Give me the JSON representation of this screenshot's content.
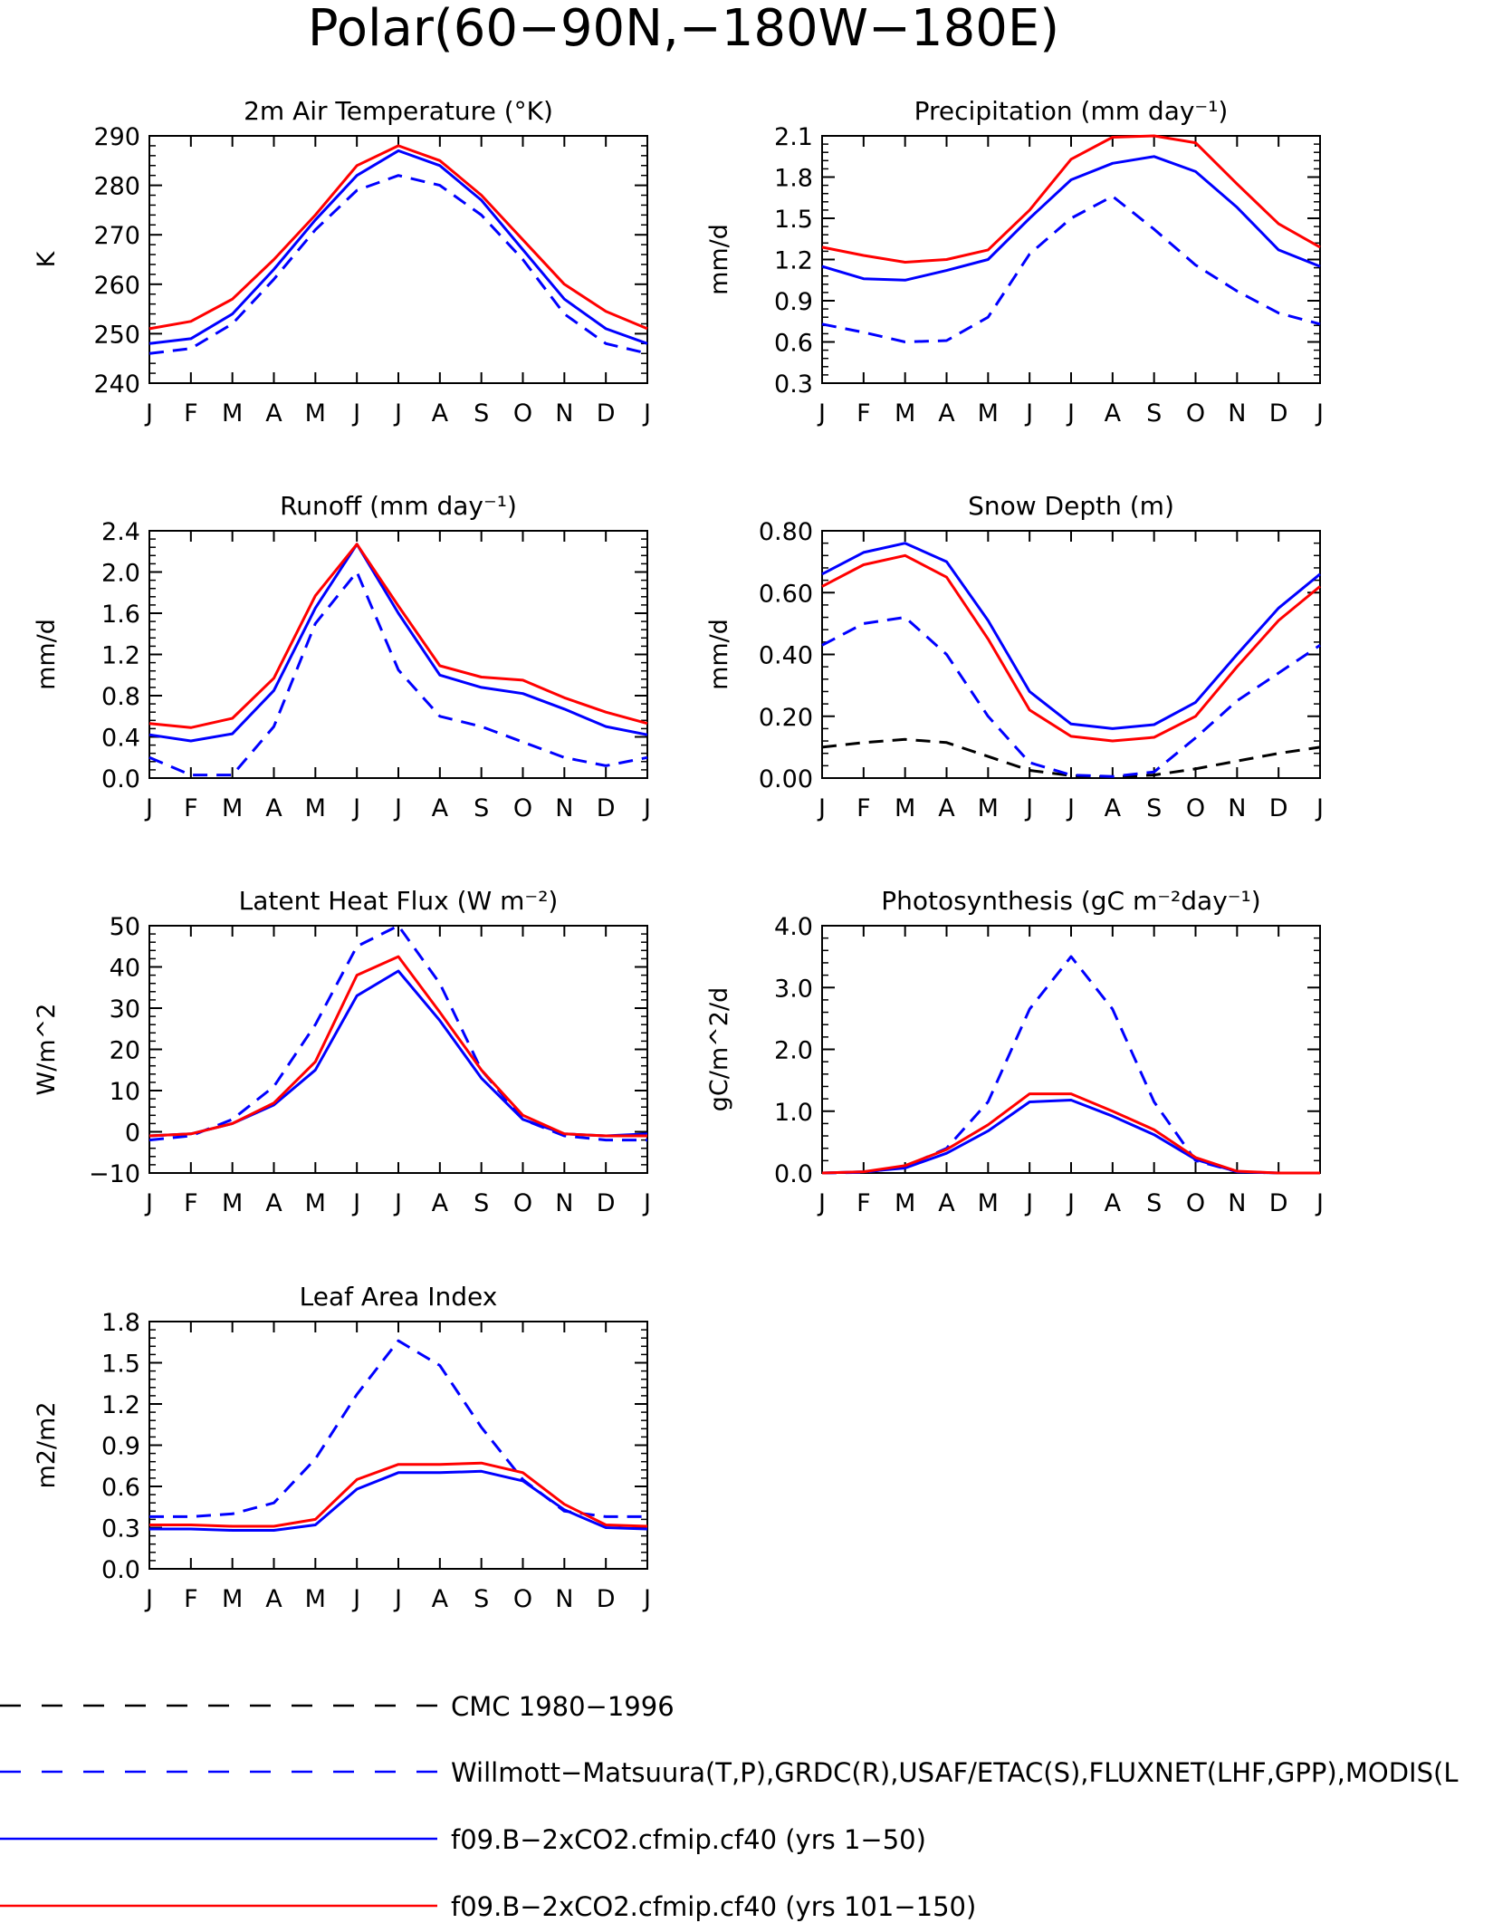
{
  "page_title": "Polar(60−90N,−180W−180E)",
  "colors": {
    "obs_cmc": "#000000",
    "obs": "#0000ff",
    "model_1_50": "#0000ff",
    "model_101_150": "#ff0000"
  },
  "legend": [
    {
      "label": "CMC 1980−1996",
      "color": "#000000",
      "style": "dashed"
    },
    {
      "label": "Willmott−Matsuura(T,P),GRDC(R),USAF/ETAC(S),FLUXNET(LHF,GPP),MODIS(L",
      "color": "#0000ff",
      "style": "dashed"
    },
    {
      "label": "f09.B−2xCO2.cfmip.cf40 (yrs 1−50)",
      "color": "#0000ff",
      "style": "solid"
    },
    {
      "label": "f09.B−2xCO2.cfmip.cf40 (yrs 101−150)",
      "color": "#ff0000",
      "style": "solid"
    }
  ],
  "chart_data": [
    {
      "type": "line",
      "title": "2m Air Temperature (°K)",
      "ylabel": "K",
      "categories": [
        "J",
        "F",
        "M",
        "A",
        "M",
        "J",
        "J",
        "A",
        "S",
        "O",
        "N",
        "D",
        "J"
      ],
      "ylim": [
        240,
        290
      ],
      "yticks": [
        "240",
        "250",
        "260",
        "270",
        "280",
        "290"
      ],
      "series": [
        {
          "style": "dashed",
          "color": "#0000ff",
          "values": [
            246,
            247,
            252,
            261,
            271,
            279,
            282,
            280,
            274,
            265,
            254,
            248,
            246
          ]
        },
        {
          "style": "solid",
          "color": "#0000ff",
          "values": [
            248,
            249,
            254,
            263,
            273,
            282,
            287,
            284,
            277,
            267,
            257,
            251,
            248
          ]
        },
        {
          "style": "solid",
          "color": "#ff0000",
          "values": [
            251,
            252.5,
            257,
            265,
            274,
            284,
            288,
            285,
            278,
            269,
            260,
            254.5,
            251
          ]
        }
      ]
    },
    {
      "type": "line",
      "title": "Precipitation (mm day⁻¹)",
      "ylabel": "mm/d",
      "categories": [
        "J",
        "F",
        "M",
        "A",
        "M",
        "J",
        "J",
        "A",
        "S",
        "O",
        "N",
        "D",
        "J"
      ],
      "ylim": [
        0.3,
        2.1
      ],
      "yticks": [
        "0.3",
        "0.6",
        "0.9",
        "1.2",
        "1.5",
        "1.8",
        "2.1"
      ],
      "series": [
        {
          "style": "dashed",
          "color": "#0000ff",
          "values": [
            0.73,
            0.67,
            0.6,
            0.61,
            0.78,
            1.24,
            1.5,
            1.66,
            1.42,
            1.16,
            0.97,
            0.81,
            0.73
          ]
        },
        {
          "style": "solid",
          "color": "#0000ff",
          "values": [
            1.15,
            1.06,
            1.05,
            1.12,
            1.2,
            1.5,
            1.78,
            1.9,
            1.95,
            1.84,
            1.58,
            1.27,
            1.15
          ]
        },
        {
          "style": "solid",
          "color": "#ff0000",
          "values": [
            1.29,
            1.23,
            1.18,
            1.2,
            1.27,
            1.56,
            1.93,
            2.09,
            2.1,
            2.05,
            1.75,
            1.46,
            1.29
          ]
        }
      ]
    },
    {
      "type": "line",
      "title": "Runoff (mm day⁻¹)",
      "ylabel": "mm/d",
      "categories": [
        "J",
        "F",
        "M",
        "A",
        "M",
        "J",
        "J",
        "A",
        "S",
        "O",
        "N",
        "D",
        "J"
      ],
      "ylim": [
        0,
        2.4
      ],
      "yticks": [
        "0.0",
        "0.4",
        "0.8",
        "1.2",
        "1.6",
        "2.0",
        "2.4"
      ],
      "series": [
        {
          "style": "dashed",
          "color": "#0000ff",
          "values": [
            0.2,
            0.03,
            0.03,
            0.5,
            1.5,
            2.0,
            1.05,
            0.6,
            0.5,
            0.35,
            0.2,
            0.12,
            0.2
          ]
        },
        {
          "style": "solid",
          "color": "#0000ff",
          "values": [
            0.42,
            0.36,
            0.43,
            0.85,
            1.65,
            2.27,
            1.6,
            1.0,
            0.88,
            0.82,
            0.67,
            0.5,
            0.42
          ]
        },
        {
          "style": "solid",
          "color": "#ff0000",
          "values": [
            0.53,
            0.49,
            0.58,
            0.97,
            1.77,
            2.27,
            1.67,
            1.09,
            0.98,
            0.95,
            0.78,
            0.64,
            0.53
          ]
        }
      ]
    },
    {
      "type": "line",
      "title": "Snow Depth (m)",
      "ylabel": "mm/d",
      "categories": [
        "J",
        "F",
        "M",
        "A",
        "M",
        "J",
        "J",
        "A",
        "S",
        "O",
        "N",
        "D",
        "J"
      ],
      "ylim": [
        0,
        0.8
      ],
      "yticks": [
        "0.00",
        "0.20",
        "0.40",
        "0.60",
        "0.80"
      ],
      "series": [
        {
          "style": "dashed",
          "color": "#000000",
          "values": [
            0.1,
            0.115,
            0.125,
            0.115,
            0.07,
            0.025,
            0.008,
            0.003,
            0.01,
            0.03,
            0.055,
            0.08,
            0.1
          ]
        },
        {
          "style": "dashed",
          "color": "#0000ff",
          "values": [
            0.43,
            0.5,
            0.52,
            0.4,
            0.2,
            0.05,
            0.01,
            0.005,
            0.02,
            0.13,
            0.25,
            0.34,
            0.43
          ]
        },
        {
          "style": "solid",
          "color": "#0000ff",
          "values": [
            0.66,
            0.73,
            0.76,
            0.7,
            0.51,
            0.28,
            0.175,
            0.16,
            0.173,
            0.245,
            0.4,
            0.55,
            0.66
          ]
        },
        {
          "style": "solid",
          "color": "#ff0000",
          "values": [
            0.62,
            0.69,
            0.72,
            0.65,
            0.45,
            0.22,
            0.135,
            0.12,
            0.132,
            0.2,
            0.36,
            0.51,
            0.62
          ]
        }
      ]
    },
    {
      "type": "line",
      "title": "Latent Heat Flux (W m⁻²)",
      "ylabel": "W/m^2",
      "categories": [
        "J",
        "F",
        "M",
        "A",
        "M",
        "J",
        "J",
        "A",
        "S",
        "O",
        "N",
        "D",
        "J"
      ],
      "ylim": [
        -10,
        50
      ],
      "yticks": [
        "−10",
        "0",
        "10",
        "20",
        "30",
        "40",
        "50"
      ],
      "series": [
        {
          "style": "dashed",
          "color": "#0000ff",
          "values": [
            -2,
            -1,
            3,
            11,
            26,
            45,
            50,
            36,
            15,
            3,
            -1,
            -2,
            -2
          ]
        },
        {
          "style": "solid",
          "color": "#0000ff",
          "values": [
            -1,
            -0.5,
            2,
            6.5,
            15,
            33,
            39,
            27,
            13,
            3,
            -0.5,
            -1,
            -0.5
          ]
        },
        {
          "style": "solid",
          "color": "#ff0000",
          "values": [
            -1,
            -0.5,
            2,
            7,
            17,
            38,
            42.5,
            29,
            15,
            4,
            -0.5,
            -1,
            -1
          ]
        }
      ]
    },
    {
      "type": "line",
      "title": "Photosynthesis (gC m⁻²day⁻¹)",
      "ylabel": "gC/m^2/d",
      "categories": [
        "J",
        "F",
        "M",
        "A",
        "M",
        "J",
        "J",
        "A",
        "S",
        "O",
        "N",
        "D",
        "J"
      ],
      "ylim": [
        0,
        4
      ],
      "yticks": [
        "0.0",
        "1.0",
        "2.0",
        "3.0",
        "4.0"
      ],
      "series": [
        {
          "style": "dashed",
          "color": "#0000ff",
          "values": [
            0,
            0.01,
            0.1,
            0.4,
            1.15,
            2.65,
            3.5,
            2.65,
            1.15,
            0.2,
            0.02,
            0.0,
            0.0
          ]
        },
        {
          "style": "solid",
          "color": "#0000ff",
          "values": [
            0,
            0.02,
            0.08,
            0.32,
            0.68,
            1.15,
            1.18,
            0.92,
            0.62,
            0.22,
            0.02,
            0.0,
            0.0
          ]
        },
        {
          "style": "solid",
          "color": "#ff0000",
          "values": [
            0,
            0.02,
            0.12,
            0.38,
            0.78,
            1.28,
            1.28,
            1.0,
            0.7,
            0.25,
            0.03,
            0.0,
            0.0
          ]
        }
      ]
    },
    {
      "type": "line",
      "title": "Leaf Area Index",
      "ylabel": "m2/m2",
      "categories": [
        "J",
        "F",
        "M",
        "A",
        "M",
        "J",
        "J",
        "A",
        "S",
        "O",
        "N",
        "D",
        "J"
      ],
      "ylim": [
        0,
        1.8
      ],
      "yticks": [
        "0.0",
        "0.3",
        "0.6",
        "0.9",
        "1.2",
        "1.5",
        "1.8"
      ],
      "series": [
        {
          "style": "dashed",
          "color": "#0000ff",
          "values": [
            0.38,
            0.38,
            0.4,
            0.48,
            0.8,
            1.27,
            1.66,
            1.48,
            1.03,
            0.65,
            0.42,
            0.38,
            0.38
          ]
        },
        {
          "style": "solid",
          "color": "#0000ff",
          "values": [
            0.29,
            0.29,
            0.28,
            0.28,
            0.32,
            0.58,
            0.7,
            0.7,
            0.71,
            0.64,
            0.43,
            0.3,
            0.29
          ]
        },
        {
          "style": "solid",
          "color": "#ff0000",
          "values": [
            0.32,
            0.32,
            0.31,
            0.31,
            0.36,
            0.65,
            0.76,
            0.76,
            0.77,
            0.7,
            0.47,
            0.32,
            0.31
          ]
        }
      ]
    }
  ]
}
